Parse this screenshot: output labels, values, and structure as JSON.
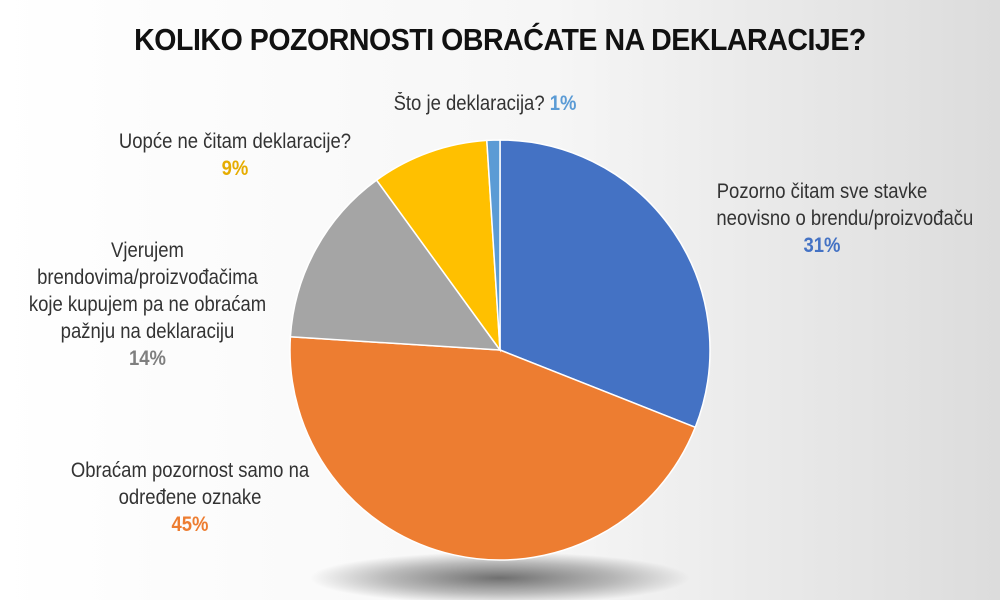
{
  "chart_data": {
    "type": "pie",
    "title": "KOLIKO POZORNOSTI OBRAĆATE NA DEKLARACIJE?",
    "slices": [
      {
        "lines": [
          "Pozorno čitam sve stavke",
          "neovisno o brendu/proizvođaču"
        ],
        "value": 31,
        "label": "31%",
        "color": "#4472c4"
      },
      {
        "lines": [
          "Obraćam pozornost samo na",
          "određene oznake"
        ],
        "value": 45,
        "label": "45%",
        "color": "#ed7d31"
      },
      {
        "lines": [
          "Vjerujem",
          "brendovima/proizvođačima",
          "koje kupujem pa ne obraćam",
          "pažnju na deklaraciju"
        ],
        "value": 14,
        "label": "14%",
        "color": "#a5a5a5"
      },
      {
        "lines": [
          "Uopće ne čitam deklaracije?"
        ],
        "value": 9,
        "label": "9%",
        "color": "#ffc000"
      },
      {
        "lines": [
          "Što je deklaracija?"
        ],
        "value": 1,
        "label": "1%",
        "color": "#5b9bd5"
      }
    ],
    "start": "12 o'clock",
    "direction": "clockwise",
    "legend": "none"
  }
}
